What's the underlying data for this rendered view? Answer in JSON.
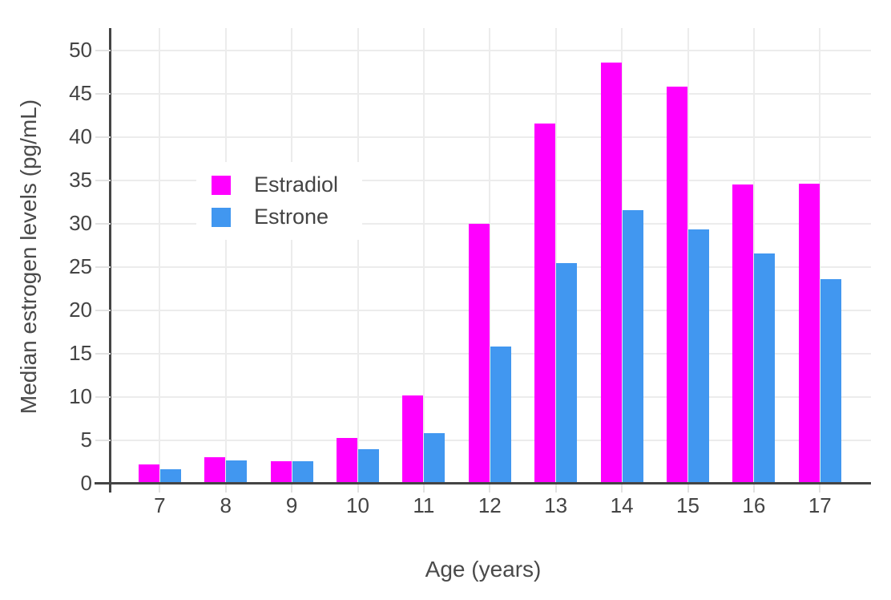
{
  "chart_data": {
    "type": "bar",
    "title": "",
    "xlabel": "Age (years)",
    "ylabel": "Median estrogen levels (pg/mL)",
    "categories": [
      "7",
      "8",
      "9",
      "10",
      "11",
      "12",
      "13",
      "14",
      "15",
      "16",
      "17"
    ],
    "series": [
      {
        "name": "Estradiol",
        "color": "#FF00FF",
        "values": [
          2.2,
          3.1,
          2.6,
          5.3,
          10.2,
          30.0,
          41.6,
          48.6,
          45.8,
          34.5,
          34.6
        ]
      },
      {
        "name": "Estrone",
        "color": "#4197F0",
        "values": [
          1.7,
          2.7,
          2.6,
          4.0,
          5.8,
          15.8,
          25.5,
          31.6,
          29.4,
          26.6,
          23.6
        ]
      }
    ],
    "ylim": [
      0,
      52.6
    ],
    "yticks": [
      0,
      5,
      10,
      15,
      20,
      25,
      30,
      35,
      40,
      45,
      50
    ],
    "grid": true,
    "legend_position": "inside-top-left",
    "colors": {
      "background": "#FFFFFF",
      "axis": "#444444",
      "grid": "#ECECEC",
      "tick_mark": "#E2E2E2",
      "text": "#444444"
    }
  }
}
